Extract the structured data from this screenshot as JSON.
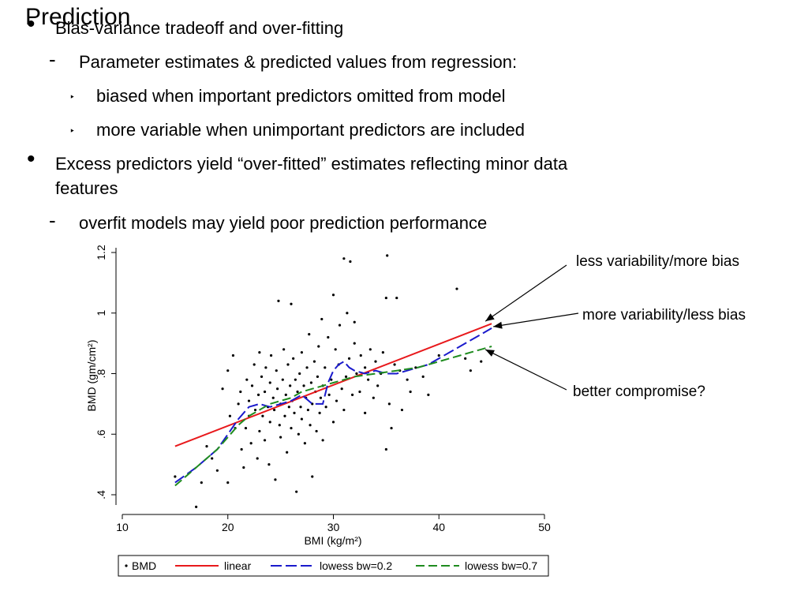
{
  "slide": {
    "title": "Prediction",
    "bullets": [
      {
        "level": 1,
        "marker": "•",
        "text": "Bias-variance tradeoff and over-fitting"
      },
      {
        "level": 2,
        "marker": "-",
        "text": "Parameter estimates & predicted values from regression:"
      },
      {
        "level": 3,
        "marker": "‣",
        "text": "biased when important predictors omitted from model"
      },
      {
        "level": 3,
        "marker": "‣",
        "text": "more variable when unimportant predictors are included"
      },
      {
        "level": 1,
        "marker": "•",
        "text": "Excess predictors yield “over-fitted” estimates reflecting minor data"
      },
      {
        "level": 1,
        "marker": "",
        "text": "features"
      },
      {
        "level": 2,
        "marker": "-",
        "text": "overfit models may yield poor prediction performance"
      }
    ]
  },
  "annotations": [
    {
      "text": "less variability/more bias",
      "target": "linear"
    },
    {
      "text": "more variability/less bias",
      "target": "lowess bw=0.2"
    },
    {
      "text": "better compromise?",
      "target": "lowess bw=0.7"
    }
  ],
  "colors": {
    "linear": "#e8191c",
    "lowess02": "#1a1acc",
    "lowess07": "#1f8c1f",
    "points": "#000000"
  },
  "chart_data": {
    "type": "scatter",
    "xlabel": "BMI (kg/m²)",
    "ylabel": "BMD (gm/cm²)",
    "xlim": [
      10,
      50
    ],
    "ylim": [
      0.4,
      1.2
    ],
    "x_ticks": [
      "10",
      "20",
      "30",
      "40",
      "50"
    ],
    "y_ticks": [
      ".4",
      ".6",
      ".8",
      "1",
      "1.2"
    ],
    "legend_position": "bottom",
    "series": [
      {
        "name": "BMD",
        "kind": "points",
        "points": [
          [
            15,
            0.46
          ],
          [
            17,
            0.36
          ],
          [
            17.5,
            0.44
          ],
          [
            18,
            0.56
          ],
          [
            18.5,
            0.52
          ],
          [
            19,
            0.48
          ],
          [
            19.5,
            0.75
          ],
          [
            20,
            0.44
          ],
          [
            20,
            0.81
          ],
          [
            20.2,
            0.66
          ],
          [
            20.5,
            0.86
          ],
          [
            20.7,
            0.62
          ],
          [
            21,
            0.7
          ],
          [
            21.2,
            0.74
          ],
          [
            21.3,
            0.55
          ],
          [
            21.5,
            0.49
          ],
          [
            21.7,
            0.62
          ],
          [
            21.8,
            0.78
          ],
          [
            22,
            0.66
          ],
          [
            22,
            0.71
          ],
          [
            22.2,
            0.57
          ],
          [
            22.3,
            0.76
          ],
          [
            22.5,
            0.83
          ],
          [
            22.6,
            0.68
          ],
          [
            22.8,
            0.52
          ],
          [
            22.9,
            0.73
          ],
          [
            23,
            0.87
          ],
          [
            23,
            0.61
          ],
          [
            23.2,
            0.79
          ],
          [
            23.3,
            0.66
          ],
          [
            23.5,
            0.58
          ],
          [
            23.5,
            0.74
          ],
          [
            23.6,
            0.82
          ],
          [
            23.8,
            0.69
          ],
          [
            23.9,
            0.5
          ],
          [
            24,
            0.77
          ],
          [
            24,
            0.64
          ],
          [
            24.1,
            0.86
          ],
          [
            24.3,
            0.72
          ],
          [
            24.4,
            0.68
          ],
          [
            24.5,
            0.45
          ],
          [
            24.6,
            0.81
          ],
          [
            24.7,
            0.75
          ],
          [
            24.8,
            1.04
          ],
          [
            24.9,
            0.63
          ],
          [
            25,
            0.7
          ],
          [
            25,
            0.59
          ],
          [
            25.2,
            0.78
          ],
          [
            25.3,
            0.88
          ],
          [
            25.4,
            0.66
          ],
          [
            25.5,
            0.73
          ],
          [
            25.6,
            0.54
          ],
          [
            25.7,
            0.83
          ],
          [
            25.8,
            0.69
          ],
          [
            25.9,
            0.76
          ],
          [
            26,
            1.03
          ],
          [
            26,
            0.62
          ],
          [
            26.1,
            0.71
          ],
          [
            26.2,
            0.85
          ],
          [
            26.3,
            0.67
          ],
          [
            26.4,
            0.78
          ],
          [
            26.5,
            0.41
          ],
          [
            26.6,
            0.74
          ],
          [
            26.7,
            0.6
          ],
          [
            26.8,
            0.8
          ],
          [
            26.9,
            0.69
          ],
          [
            27,
            0.87
          ],
          [
            27,
            0.65
          ],
          [
            27.2,
            0.76
          ],
          [
            27.3,
            0.57
          ],
          [
            27.4,
            0.72
          ],
          [
            27.5,
            0.82
          ],
          [
            27.6,
            0.68
          ],
          [
            27.7,
            0.93
          ],
          [
            27.8,
            0.63
          ],
          [
            27.9,
            0.77
          ],
          [
            28,
            0.7
          ],
          [
            28,
            0.46
          ],
          [
            28.2,
            0.84
          ],
          [
            28.3,
            0.74
          ],
          [
            28.4,
            0.61
          ],
          [
            28.5,
            0.79
          ],
          [
            28.6,
            0.89
          ],
          [
            28.7,
            0.67
          ],
          [
            28.8,
            0.72
          ],
          [
            28.9,
            0.98
          ],
          [
            29,
            0.76
          ],
          [
            29,
            0.58
          ],
          [
            29.2,
            0.82
          ],
          [
            29.3,
            0.69
          ],
          [
            29.5,
            0.92
          ],
          [
            29.6,
            0.73
          ],
          [
            29.8,
            0.78
          ],
          [
            30,
            1.06
          ],
          [
            30,
            0.64
          ],
          [
            30.2,
            0.88
          ],
          [
            30.3,
            0.71
          ],
          [
            30.5,
            0.83
          ],
          [
            30.6,
            0.96
          ],
          [
            30.8,
            0.75
          ],
          [
            31,
            1.18
          ],
          [
            31,
            0.68
          ],
          [
            31.2,
            0.79
          ],
          [
            31.3,
            1.0
          ],
          [
            31.5,
            0.85
          ],
          [
            31.6,
            1.17
          ],
          [
            31.8,
            0.73
          ],
          [
            32,
            0.9
          ],
          [
            32,
            0.97
          ],
          [
            32.2,
            0.8
          ],
          [
            32.5,
            0.74
          ],
          [
            32.6,
            0.86
          ],
          [
            33,
            0.82
          ],
          [
            33,
            0.67
          ],
          [
            33.3,
            0.78
          ],
          [
            33.5,
            0.88
          ],
          [
            33.8,
            0.72
          ],
          [
            34,
            0.84
          ],
          [
            34.2,
            0.76
          ],
          [
            34.5,
            0.8
          ],
          [
            34.7,
            0.87
          ],
          [
            35,
            1.05
          ],
          [
            35,
            0.55
          ],
          [
            35.1,
            1.19
          ],
          [
            35.3,
            0.7
          ],
          [
            35.5,
            0.62
          ],
          [
            35.8,
            0.83
          ],
          [
            36,
            1.05
          ],
          [
            36.3,
            0.81
          ],
          [
            36.5,
            0.68
          ],
          [
            37,
            0.78
          ],
          [
            37.3,
            0.74
          ],
          [
            37.8,
            0.82
          ],
          [
            38.5,
            0.79
          ],
          [
            39,
            0.73
          ],
          [
            40,
            0.86
          ],
          [
            41.7,
            1.08
          ],
          [
            42.5,
            0.85
          ],
          [
            43,
            0.81
          ],
          [
            44,
            0.84
          ],
          [
            45,
            0.87
          ]
        ]
      },
      {
        "name": "linear",
        "kind": "line",
        "style": "solid",
        "x": [
          15,
          45
        ],
        "y": [
          0.56,
          0.965
        ]
      },
      {
        "name": "lowess bw=0.2",
        "kind": "line",
        "style": "dash-long",
        "x": [
          15,
          17,
          19,
          20,
          21,
          22,
          23,
          24,
          25,
          26,
          27,
          28,
          29,
          29.5,
          30,
          30.5,
          31,
          31.5,
          32,
          33,
          34,
          35,
          36,
          37,
          38,
          39,
          40,
          41,
          42,
          43,
          44,
          45
        ],
        "y": [
          0.44,
          0.49,
          0.55,
          0.6,
          0.65,
          0.69,
          0.7,
          0.69,
          0.7,
          0.71,
          0.73,
          0.7,
          0.7,
          0.77,
          0.81,
          0.83,
          0.84,
          0.82,
          0.81,
          0.8,
          0.81,
          0.8,
          0.8,
          0.81,
          0.82,
          0.83,
          0.85,
          0.87,
          0.89,
          0.91,
          0.93,
          0.95
        ]
      },
      {
        "name": "lowess bw=0.7",
        "kind": "line",
        "style": "dash",
        "x": [
          15,
          17,
          19,
          20,
          21,
          22,
          23,
          24,
          25,
          26,
          27,
          28,
          29,
          30,
          31,
          32,
          33,
          34,
          35,
          36,
          37,
          38,
          39,
          40,
          41,
          42,
          43,
          44,
          45
        ],
        "y": [
          0.43,
          0.49,
          0.55,
          0.59,
          0.63,
          0.66,
          0.68,
          0.7,
          0.71,
          0.72,
          0.74,
          0.75,
          0.76,
          0.77,
          0.78,
          0.79,
          0.795,
          0.8,
          0.805,
          0.81,
          0.815,
          0.82,
          0.83,
          0.84,
          0.85,
          0.86,
          0.87,
          0.88,
          0.89
        ]
      }
    ]
  }
}
